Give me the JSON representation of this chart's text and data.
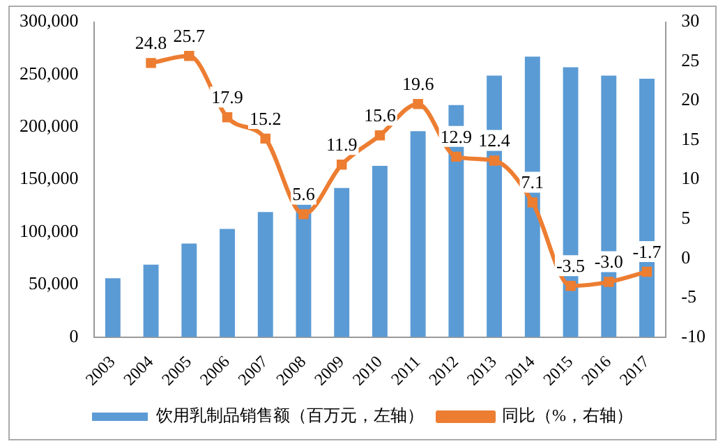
{
  "chart_data": {
    "type": "bar",
    "categories": [
      "2003",
      "2004",
      "2005",
      "2006",
      "2007",
      "2008",
      "2009",
      "2010",
      "2011",
      "2012",
      "2013",
      "2014",
      "2015",
      "2016",
      "2017"
    ],
    "series": [
      {
        "name": "饮用乳制品销售额（百万元，左轴）",
        "color": "#5b9bd5",
        "values": [
          56000,
          69000,
          89000,
          103000,
          119000,
          126000,
          142000,
          163000,
          196000,
          221000,
          249000,
          267000,
          257000,
          249000,
          246000
        ]
      },
      {
        "name": "同比（%，右轴）",
        "type": "line",
        "axis": "y2",
        "color": "#ed7d31",
        "marker": "square",
        "values": [
          null,
          24.8,
          25.7,
          17.9,
          15.2,
          5.6,
          11.9,
          15.6,
          19.6,
          12.9,
          12.4,
          7.1,
          -3.5,
          -3.0,
          -1.7
        ],
        "value_labels": [
          null,
          "24.8",
          "25.7",
          "17.9",
          "15.2",
          "5.6",
          "11.9",
          "15.6",
          "19.6",
          "12.9",
          "12.4",
          "7.1",
          "-3.5",
          "-3.0",
          "-1.7"
        ]
      }
    ],
    "ylim": [
      0,
      300000
    ],
    "yticks": [
      {
        "value": 0,
        "label": "0"
      },
      {
        "value": 50000,
        "label": "50,000"
      },
      {
        "value": 100000,
        "label": "100,000"
      },
      {
        "value": 150000,
        "label": "150,000"
      },
      {
        "value": 200000,
        "label": "200,000"
      },
      {
        "value": 250000,
        "label": "250,000"
      },
      {
        "value": 300000,
        "label": "300,000"
      }
    ],
    "y2lim": [
      -10,
      30
    ],
    "y2ticks": [
      -10,
      -5,
      0,
      5,
      10,
      15,
      20,
      25,
      30
    ],
    "grid": false,
    "legend": "bottom"
  }
}
